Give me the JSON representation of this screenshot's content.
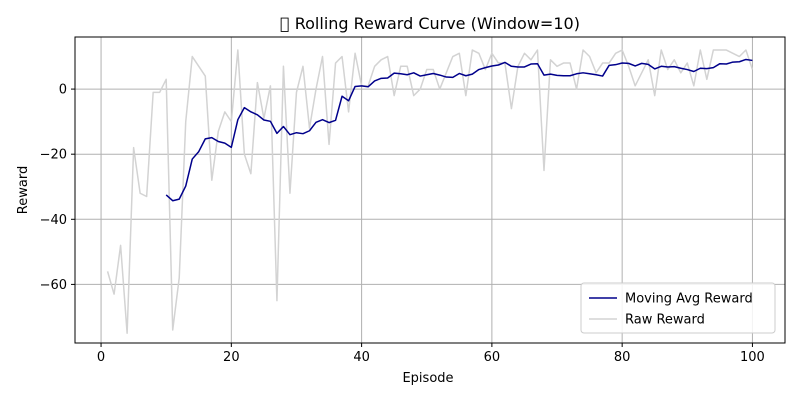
{
  "chart_data": {
    "type": "line",
    "title": "\u0000 Rolling Reward Curve (Window=10)",
    "xlabel": "Episode",
    "ylabel": "Reward",
    "xlim": [
      -4,
      105
    ],
    "ylim": [
      -78,
      16
    ],
    "xticks": [
      0,
      20,
      40,
      60,
      80,
      100
    ],
    "yticks": [
      -60,
      -40,
      -20,
      0
    ],
    "grid": true,
    "legend_position": "lower-right",
    "series": [
      {
        "name": "Moving Avg Reward",
        "color": "#00008b",
        "style": "solid",
        "x": [
          10,
          11,
          12,
          13,
          14,
          15,
          16,
          17,
          18,
          19,
          20,
          21,
          22,
          23,
          24,
          25,
          26,
          27,
          28,
          29,
          30,
          31,
          32,
          33,
          34,
          35,
          36,
          37,
          38,
          39,
          40,
          41,
          42,
          43,
          44,
          45,
          46,
          47,
          48,
          49,
          50,
          51,
          52,
          53,
          54,
          55,
          56,
          57,
          58,
          59,
          60,
          61,
          62,
          63,
          64,
          65,
          66,
          67,
          68,
          69,
          70,
          71,
          72,
          73,
          74,
          75,
          76,
          77,
          78,
          79,
          80,
          81,
          82,
          83,
          84,
          85,
          86,
          87,
          88,
          89,
          90,
          91,
          92,
          93,
          94,
          95,
          96,
          97,
          98,
          99,
          100
        ],
        "values": [
          -32.5,
          -34.3,
          -33.8,
          -29.8,
          -21.5,
          -19.2,
          -15.3,
          -14.9,
          -16.1,
          -16.6,
          -17.9,
          -9.4,
          -5.7,
          -7,
          -7.9,
          -9.5,
          -9.9,
          -13.6,
          -11.5,
          -14,
          -13.4,
          -13.7,
          -12.8,
          -10.2,
          -9.4,
          -10.3,
          -9.6,
          -2.2,
          -3.6,
          0.8,
          1,
          0.7,
          2.5,
          3.3,
          3.4,
          4.9,
          4.7,
          4.4,
          5,
          4,
          4.4,
          4.8,
          4.3,
          3.7,
          3.6,
          4.8,
          4.1,
          4.6,
          6,
          6.6,
          7.1,
          7.4,
          8.2,
          7,
          6.8,
          6.8,
          7.7,
          7.8,
          4.3,
          4.6,
          4.2,
          4.1,
          4.1,
          4.7,
          5,
          4.7,
          4.4,
          4,
          7.3,
          7.5,
          8,
          7.9,
          7.1,
          7.9,
          7.6,
          6.2,
          7,
          6.8,
          6.9,
          6.4,
          6,
          5.4,
          6.4,
          6.3,
          6.6,
          7.8,
          7.7,
          8.3,
          8.4,
          9.1,
          8.8
        ]
      },
      {
        "name": "Raw Reward",
        "color": "#d3d3d3",
        "style": "solid",
        "x": [
          1,
          2,
          3,
          4,
          5,
          6,
          7,
          8,
          9,
          10,
          11,
          12,
          13,
          14,
          15,
          16,
          17,
          18,
          19,
          20,
          21,
          22,
          23,
          24,
          25,
          26,
          27,
          28,
          29,
          30,
          31,
          32,
          33,
          34,
          35,
          36,
          37,
          38,
          39,
          40,
          41,
          42,
          43,
          44,
          45,
          46,
          47,
          48,
          49,
          50,
          51,
          52,
          53,
          54,
          55,
          56,
          57,
          58,
          59,
          60,
          61,
          62,
          63,
          64,
          65,
          66,
          67,
          68,
          69,
          70,
          71,
          72,
          73,
          74,
          75,
          76,
          77,
          78,
          79,
          80,
          81,
          82,
          83,
          84,
          85,
          86,
          87,
          88,
          89,
          90,
          91,
          92,
          93,
          94,
          95,
          96,
          97,
          98,
          99,
          100
        ],
        "values": [
          -56,
          -63,
          -48,
          -75,
          -18,
          -32,
          -33,
          -1,
          -1,
          3,
          -74,
          -58,
          -10,
          10,
          7,
          4,
          -28,
          -13,
          -7,
          -10,
          12,
          -20,
          -26,
          2,
          -9,
          1,
          -65,
          7,
          -32,
          -1,
          7,
          -12,
          0,
          10,
          -17,
          8,
          10,
          -7,
          11,
          1,
          1,
          7,
          9,
          10,
          -2,
          7,
          7,
          -2,
          0,
          6,
          6,
          0,
          5,
          10,
          11,
          -2,
          12,
          11,
          6,
          11,
          8,
          8,
          -6,
          7,
          11,
          9,
          12,
          -25,
          9,
          7,
          8,
          8,
          0,
          12,
          10,
          5,
          8,
          8,
          11,
          12,
          7,
          1,
          5,
          9,
          -2,
          12,
          6,
          9,
          5,
          8,
          1,
          12,
          3,
          12,
          12,
          12,
          11,
          10,
          12,
          6
        ]
      }
    ]
  }
}
